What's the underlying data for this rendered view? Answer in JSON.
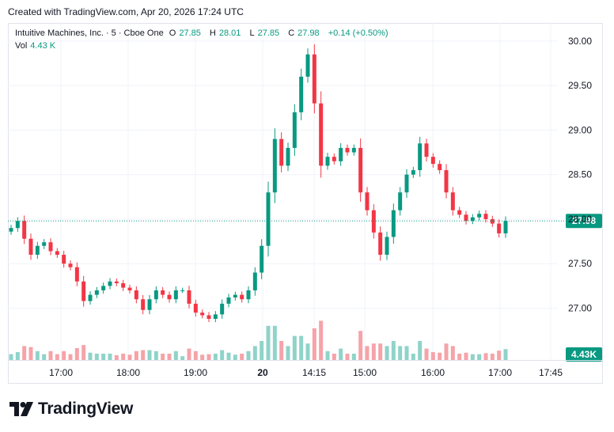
{
  "header": {
    "created_text": "Created with TradingView.com, Apr 20, 2026 17:24 UTC"
  },
  "legend": {
    "symbol": "Intuitive Machines, Inc. · 5 · Cboe One",
    "open_label": "O",
    "open": "27.85",
    "high_label": "H",
    "high": "28.01",
    "low_label": "L",
    "low": "27.85",
    "close_label": "C",
    "close": "27.98",
    "change": "+0.14 (+0.50%)",
    "vol_label": "Vol",
    "vol_value": "4.43 K"
  },
  "footer": {
    "brand": "TradingView"
  },
  "colors": {
    "up": "#089981",
    "down": "#f23645",
    "up_volume": "#8fd3c9",
    "down_volume": "#f5a3a9",
    "grid": "#f0f3fa",
    "text": "#131722"
  },
  "chart_data": {
    "type": "candlestick",
    "price_axis": {
      "ticks": [
        "30.00",
        "29.50",
        "29.00",
        "28.50",
        "28.00",
        "27.50",
        "27.00"
      ],
      "range": [
        26.56,
        30.15
      ]
    },
    "time_axis": {
      "ticks": [
        "17:00",
        "18:00",
        "19:00",
        "20",
        "14:15",
        "15:00",
        "16:00",
        "17:00",
        "17:45"
      ]
    },
    "last_price": "27.98",
    "last_volume": "4.43K",
    "segments": [
      {
        "count": 76,
        "values": [
          27.9,
          27.98,
          27.78,
          27.6,
          27.7,
          27.74,
          27.64,
          27.6,
          27.5,
          27.46,
          27.3,
          27.08,
          27.15,
          27.2,
          27.25,
          27.3,
          27.28,
          27.23,
          27.2,
          27.1,
          26.98,
          27.1,
          27.2,
          27.15,
          27.1,
          27.2,
          27.2,
          27.05,
          26.95,
          26.92,
          26.88,
          26.93,
          27.05,
          27.12,
          27.15,
          27.1,
          27.2,
          27.4,
          27.7,
          28.3,
          28.9,
          28.6,
          28.8,
          29.2,
          29.6,
          29.85,
          29.3,
          28.6,
          28.7,
          28.65,
          28.8,
          28.75,
          28.8,
          28.3,
          28.1,
          27.85,
          27.6,
          27.8,
          28.1,
          28.3,
          28.5,
          28.55,
          28.85,
          28.7,
          28.62,
          28.55,
          28.3,
          28.1,
          28.05,
          27.98,
          28.02,
          28.06,
          28.0,
          27.95,
          27.84,
          27.98
        ]
      }
    ],
    "volume_scale_max": 100
  }
}
